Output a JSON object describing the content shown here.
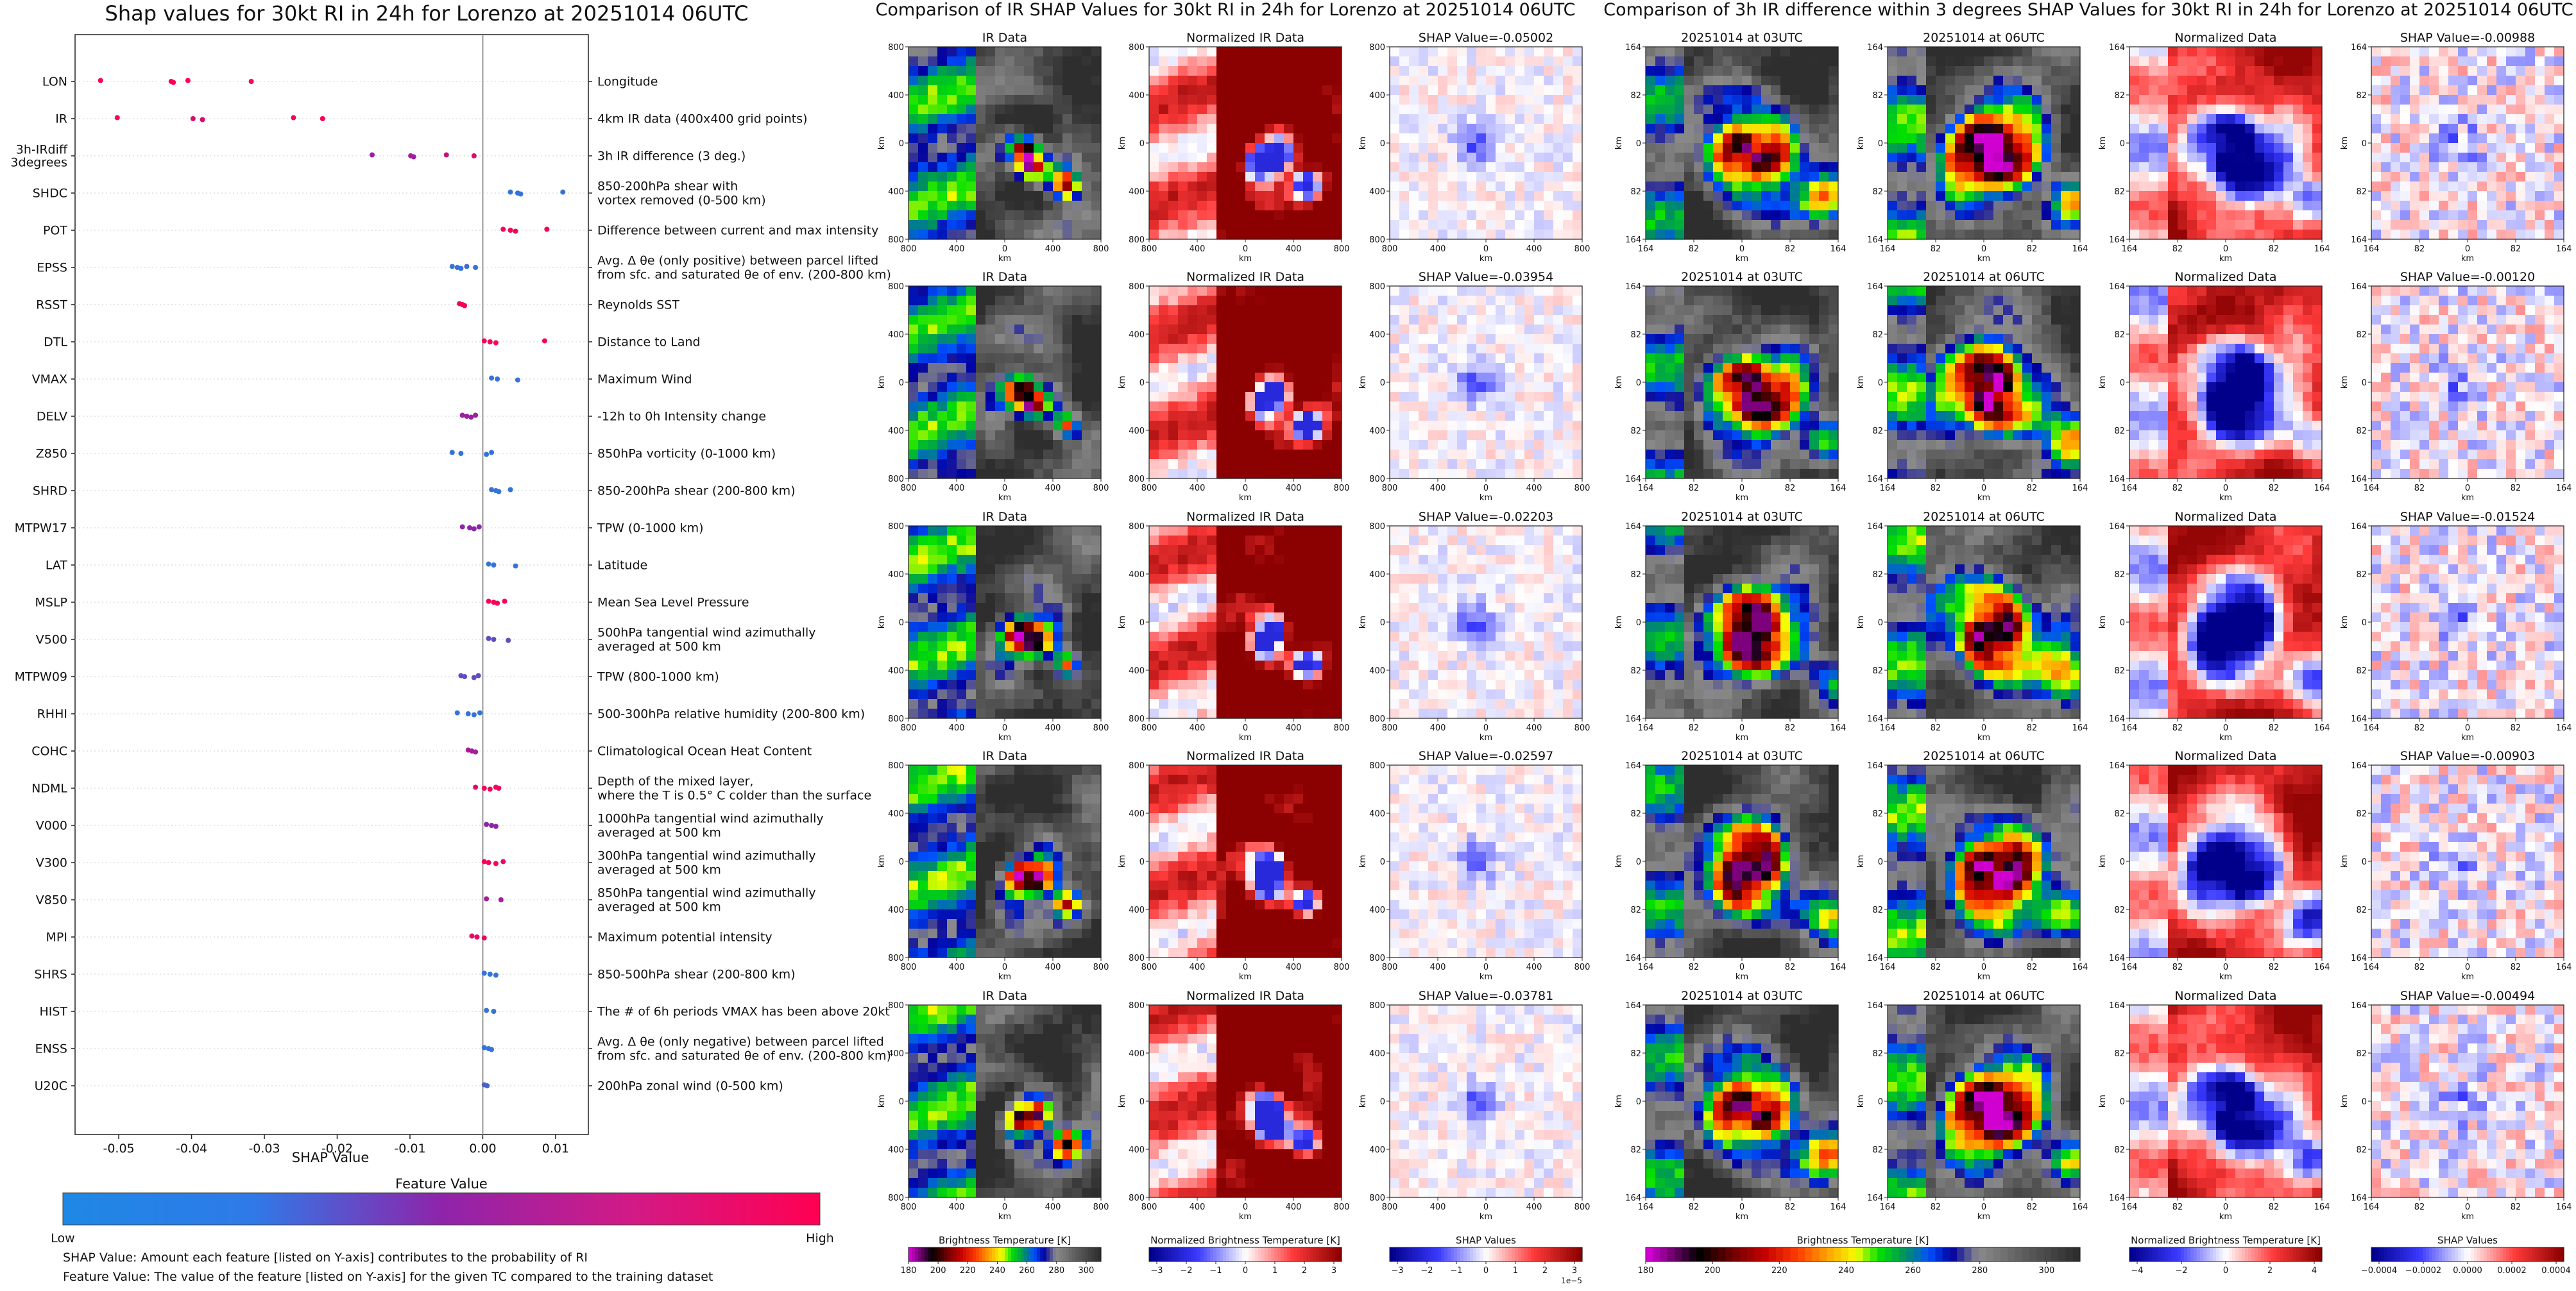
{
  "chart_data": [
    {
      "type": "scatter",
      "title": "Shap values for 30kt RI in 24h for Lorenzo at 20251014 06UTC",
      "xlabel": "SHAP Value",
      "xlim": [
        -0.056,
        0.0145
      ],
      "xticks": [
        "-0.05",
        "-0.04",
        "-0.03",
        "-0.02",
        "-0.01",
        "0.00",
        "0.01"
      ],
      "xtick_values": [
        -0.05,
        -0.04,
        -0.03,
        -0.02,
        -0.01,
        0.0,
        0.01
      ],
      "features": [
        {
          "code": "LON",
          "desc": "Longitude",
          "points": [
            [
              -0.0525,
              1
            ],
            [
              -0.0428,
              1
            ],
            [
              -0.0425,
              1
            ],
            [
              -0.0405,
              1
            ],
            [
              -0.0318,
              1
            ]
          ]
        },
        {
          "code": "IR",
          "desc": "4km IR data (400x400 grid points)",
          "points": [
            [
              -0.0502,
              1
            ],
            [
              -0.0398,
              0.85
            ],
            [
              -0.0385,
              0.85
            ],
            [
              -0.026,
              0.95
            ],
            [
              -0.022,
              1
            ]
          ]
        },
        {
          "code": "3h-IRdiff\n3degrees",
          "desc": "3h IR difference (3 deg.)",
          "points": [
            [
              -0.0152,
              0.55
            ],
            [
              -0.0099,
              0.6
            ],
            [
              -0.0095,
              0.55
            ],
            [
              -0.005,
              0.75
            ],
            [
              -0.0012,
              0.85
            ]
          ]
        },
        {
          "code": "SHDC",
          "desc": "850-200hPa shear with\nvortex removed (0-500 km)",
          "points": [
            [
              0.0038,
              0.1
            ],
            [
              0.0048,
              0.1
            ],
            [
              0.0052,
              0.1
            ],
            [
              0.011,
              0.1
            ]
          ]
        },
        {
          "code": "POT",
          "desc": "Difference between current and max intensity",
          "points": [
            [
              0.0028,
              0.95
            ],
            [
              0.0038,
              0.95
            ],
            [
              0.0045,
              0.95
            ],
            [
              0.0088,
              0.95
            ]
          ]
        },
        {
          "code": "EPSS",
          "desc": "Avg. Δ θe (only positive) between parcel lifted\nfrom sfc. and saturated θe of env. (200-800 km)",
          "points": [
            [
              -0.0042,
              0.1
            ],
            [
              -0.0035,
              0.1
            ],
            [
              -0.003,
              0.1
            ],
            [
              -0.0022,
              0.15
            ],
            [
              -0.001,
              0.1
            ]
          ]
        },
        {
          "code": "RSST",
          "desc": "Reynolds SST",
          "points": [
            [
              -0.0032,
              0.95
            ],
            [
              -0.0028,
              0.95
            ],
            [
              -0.0025,
              0.95
            ]
          ]
        },
        {
          "code": "DTL",
          "desc": "Distance to Land",
          "points": [
            [
              0.0002,
              0.95
            ],
            [
              0.001,
              0.95
            ],
            [
              0.0018,
              0.95
            ],
            [
              0.0085,
              0.95
            ]
          ]
        },
        {
          "code": "VMAX",
          "desc": "Maximum Wind",
          "points": [
            [
              0.0012,
              0.1
            ],
            [
              0.002,
              0.1
            ],
            [
              0.0048,
              0.1
            ]
          ]
        },
        {
          "code": "DELV",
          "desc": "-12h to 0h Intensity change",
          "points": [
            [
              -0.0028,
              0.55
            ],
            [
              -0.0022,
              0.55
            ],
            [
              -0.0016,
              0.55
            ],
            [
              -0.001,
              0.55
            ]
          ]
        },
        {
          "code": "Z850",
          "desc": "850hPa vorticity (0-1000 km)",
          "points": [
            [
              -0.0042,
              0.1
            ],
            [
              -0.003,
              0.1
            ],
            [
              0.0005,
              0.1
            ],
            [
              0.0012,
              0.1
            ]
          ]
        },
        {
          "code": "SHRD",
          "desc": "850-200hPa shear (200-800 km)",
          "points": [
            [
              0.0012,
              0.1
            ],
            [
              0.0018,
              0.1
            ],
            [
              0.0022,
              0.1
            ],
            [
              0.0038,
              0.1
            ]
          ]
        },
        {
          "code": "MTPW17",
          "desc": "TPW (0-1000 km)",
          "points": [
            [
              -0.0028,
              0.5
            ],
            [
              -0.0018,
              0.5
            ],
            [
              -0.0012,
              0.5
            ],
            [
              -0.0005,
              0.5
            ]
          ]
        },
        {
          "code": "LAT",
          "desc": "Latitude",
          "points": [
            [
              0.0008,
              0.1
            ],
            [
              0.0015,
              0.1
            ],
            [
              0.0045,
              0.1
            ]
          ]
        },
        {
          "code": "MSLP",
          "desc": "Mean Sea Level Pressure",
          "points": [
            [
              0.0008,
              0.95
            ],
            [
              0.0015,
              0.95
            ],
            [
              0.002,
              0.95
            ],
            [
              0.003,
              0.95
            ]
          ]
        },
        {
          "code": "V500",
          "desc": "500hPa tangential wind azimuthally\naveraged at 500 km",
          "points": [
            [
              0.0008,
              0.3
            ],
            [
              0.0015,
              0.3
            ],
            [
              0.0035,
              0.3
            ]
          ]
        },
        {
          "code": "MTPW09",
          "desc": "TPW (800-1000 km)",
          "points": [
            [
              -0.003,
              0.3
            ],
            [
              -0.0025,
              0.3
            ],
            [
              -0.0012,
              0.3
            ],
            [
              -0.0006,
              0.3
            ]
          ]
        },
        {
          "code": "RHHI",
          "desc": "500-300hPa relative humidity (200-800 km)",
          "points": [
            [
              -0.0035,
              0.1
            ],
            [
              -0.002,
              0.1
            ],
            [
              -0.0012,
              0.1
            ],
            [
              -0.0004,
              0.1
            ]
          ]
        },
        {
          "code": "COHC",
          "desc": "Climatological Ocean Heat Content",
          "points": [
            [
              -0.002,
              0.6
            ],
            [
              -0.0015,
              0.6
            ],
            [
              -0.001,
              0.6
            ]
          ]
        },
        {
          "code": "NDML",
          "desc": "Depth of the mixed layer,\nwhere the T is 0.5° C colder than the surface",
          "points": [
            [
              -0.001,
              0.9
            ],
            [
              0.0002,
              0.95
            ],
            [
              0.001,
              0.95
            ],
            [
              0.0018,
              0.95
            ],
            [
              0.0022,
              0.9
            ]
          ]
        },
        {
          "code": "V000",
          "desc": "1000hPa tangential wind azimuthally\naveraged at 500 km",
          "points": [
            [
              0.0005,
              0.5
            ],
            [
              0.0012,
              0.5
            ],
            [
              0.0018,
              0.5
            ]
          ]
        },
        {
          "code": "V300",
          "desc": "300hPa tangential wind azimuthally\naveraged at 500 km",
          "points": [
            [
              0.0002,
              0.95
            ],
            [
              0.0008,
              0.95
            ],
            [
              0.0018,
              0.95
            ],
            [
              0.0028,
              0.9
            ]
          ]
        },
        {
          "code": "V850",
          "desc": "850hPa tangential wind azimuthally\naveraged at 500 km",
          "points": [
            [
              0.0005,
              0.6
            ],
            [
              0.0025,
              0.6
            ]
          ]
        },
        {
          "code": "MPI",
          "desc": "Maximum potential intensity",
          "points": [
            [
              -0.0015,
              0.9
            ],
            [
              -0.0008,
              0.9
            ],
            [
              0.0002,
              0.9
            ]
          ]
        },
        {
          "code": "SHRS",
          "desc": "850-500hPa shear (200-800 km)",
          "points": [
            [
              0.0002,
              0.1
            ],
            [
              0.001,
              0.1
            ],
            [
              0.0018,
              0.1
            ]
          ]
        },
        {
          "code": "HIST",
          "desc": "The # of 6h periods VMAX has been above 20kt",
          "points": [
            [
              0.0005,
              0.1
            ],
            [
              0.0015,
              0.1
            ]
          ]
        },
        {
          "code": "ENSS",
          "desc": "Avg. Δ θe (only negative) between parcel lifted\nfrom sfc. and saturated θe of env. (200-800 km)",
          "points": [
            [
              0.0002,
              0.1
            ],
            [
              0.0008,
              0.1
            ],
            [
              0.0012,
              0.1
            ]
          ]
        },
        {
          "code": "U20C",
          "desc": "200hPa zonal wind (0-500 km)",
          "points": [
            [
              0.0002,
              0.2
            ],
            [
              0.0006,
              0.2
            ]
          ]
        }
      ],
      "colorbar_title": "Feature Value",
      "colorbar_low": "Low",
      "colorbar_high": "High",
      "colors": {
        "low": "#1e88e5",
        "mid": "#8e24aa",
        "high": "#ff0052",
        "zero_line": "#999999"
      }
    },
    {
      "type": "heatmap",
      "title": "Comparison of IR SHAP Values for 30kt RI in 24h for Lorenzo at 20251014 06UTC",
      "columns": [
        {
          "kind": "ir",
          "title": "IR Data"
        },
        {
          "kind": "norm",
          "title": "Normalized IR Data"
        },
        {
          "kind": "shap",
          "title": "SHAP Value="
        }
      ],
      "shap_values": [
        "SHAP Value=-0.05002",
        "SHAP Value=-0.03954",
        "SHAP Value=-0.02203",
        "SHAP Value=-0.02597",
        "SHAP Value=-0.03781"
      ],
      "axis_ticks_y": [
        "800",
        "400",
        "0",
        "400",
        "800"
      ],
      "axis_ticks_x": [
        "800",
        "400",
        "0",
        "400",
        "800"
      ],
      "axis_label": "km",
      "colorbars": [
        {
          "label": "Brightness Temperature [K]",
          "ticks": [
            "180",
            "200",
            "220",
            "240",
            "260",
            "280",
            "300"
          ]
        },
        {
          "label": "Normalized Brightness Temperature [K]",
          "ticks": [
            "−3",
            "−2",
            "−1",
            "0",
            "1",
            "2",
            "3"
          ]
        },
        {
          "label": "SHAP Values",
          "ticks": [
            "−3",
            "−2",
            "−1",
            "0",
            "1",
            "2",
            "3"
          ],
          "exponent": "1e−5"
        }
      ]
    },
    {
      "type": "heatmap",
      "title": "Comparison of 3h IR difference within 3 degrees SHAP Values for 30kt RI in 24h for Lorenzo at 20251014 06UTC",
      "columns": [
        {
          "kind": "ir03",
          "title": "20251014 at 03UTC"
        },
        {
          "kind": "ir06",
          "title": "20251014 at 06UTC"
        },
        {
          "kind": "norm",
          "title": "Normalized Data"
        },
        {
          "kind": "shap",
          "title": "SHAP Value="
        }
      ],
      "shap_values": [
        "SHAP Value=-0.00988",
        "SHAP Value=-0.00120",
        "SHAP Value=-0.01524",
        "SHAP Value=-0.00903",
        "SHAP Value=-0.00494"
      ],
      "axis_ticks_y": [
        "164",
        "82",
        "0",
        "82",
        "164"
      ],
      "axis_ticks_x": [
        "164",
        "82",
        "0",
        "82",
        "164"
      ],
      "axis_label": "km",
      "colorbars": [
        {
          "label": "Brightness Temperature [K]",
          "ticks": [
            "180",
            "200",
            "220",
            "240",
            "260",
            "280",
            "300"
          ]
        },
        {
          "label": "Normalized Brightness Temperature [K]",
          "ticks": [
            "−4",
            "−2",
            "0",
            "2",
            "4"
          ]
        },
        {
          "label": "SHAP Values",
          "ticks": [
            "−0.0004",
            "−0.0002",
            "0.0000",
            "0.0002",
            "0.0004"
          ]
        }
      ]
    }
  ],
  "footnotes": {
    "line1": "SHAP Value: Amount each feature [listed on Y-axis] contributes to the probability of RI",
    "line2": "Feature Value: The value of the feature [listed on Y-axis] for the given TC compared to the training dataset"
  }
}
